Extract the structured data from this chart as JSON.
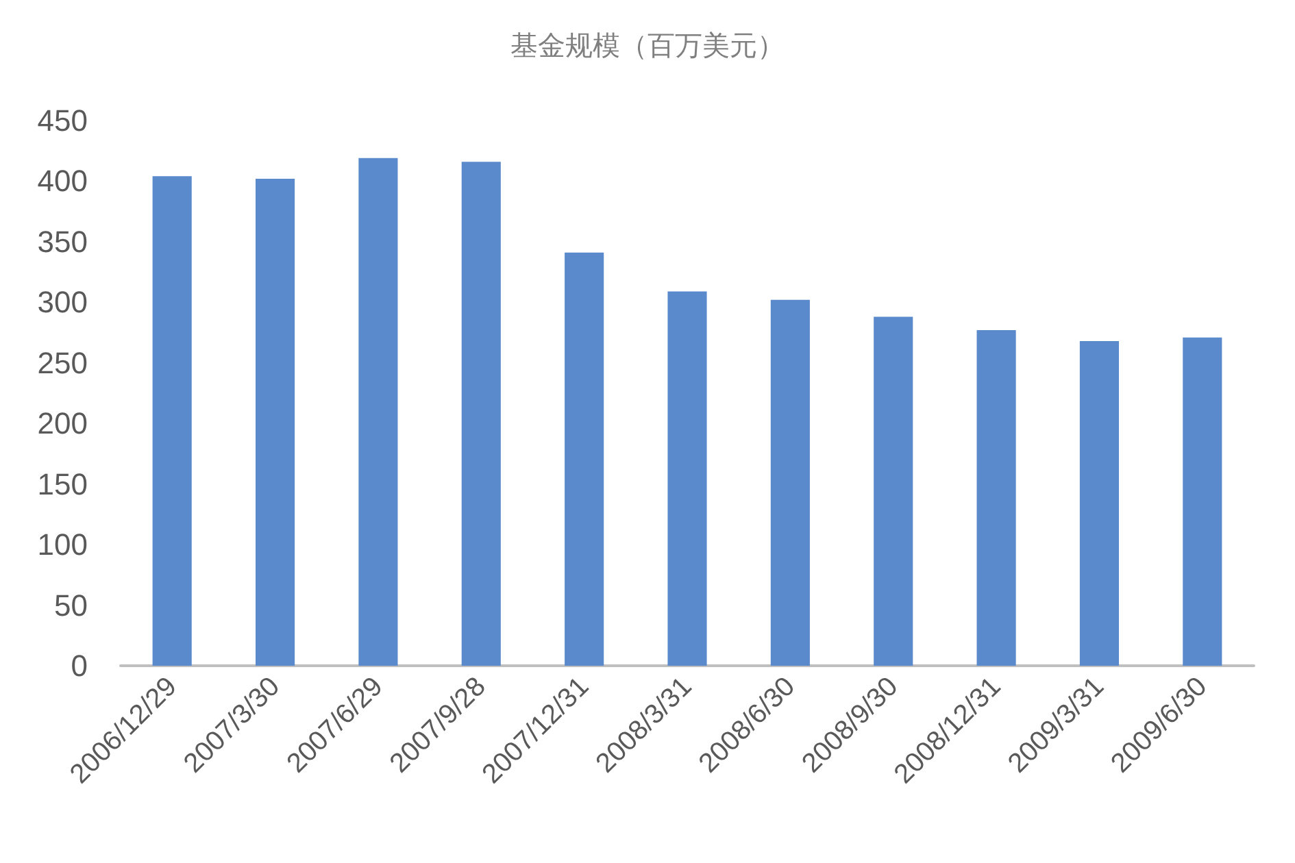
{
  "chart_data": {
    "type": "bar",
    "title": "基金规模（百万美元）",
    "categories": [
      "2006/12/29",
      "2007/3/30",
      "2007/6/29",
      "2007/9/28",
      "2007/12/31",
      "2008/3/31",
      "2008/6/30",
      "2008/9/30",
      "2008/12/31",
      "2009/3/31",
      "2009/6/30"
    ],
    "values": [
      404,
      402,
      419,
      416,
      341,
      309,
      302,
      288,
      277,
      268,
      271
    ],
    "color": "#5a8acb",
    "ylim": [
      0,
      450
    ],
    "yticks": [
      0,
      50,
      100,
      150,
      200,
      250,
      300,
      350,
      400,
      450
    ],
    "grid": false
  }
}
